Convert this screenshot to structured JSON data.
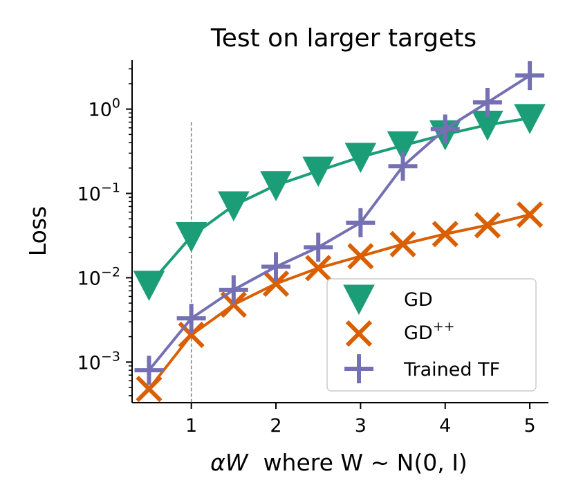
{
  "chart_data": {
    "type": "line",
    "title": "Test on larger targets",
    "ylabel": "Loss",
    "xlabel_math": "αW",
    "xlabel_text": "where W ∼ N(0, I)",
    "yscale": "log",
    "xlim": [
      0.3,
      5.22
    ],
    "ylim": [
      0.00033,
      3.8
    ],
    "x_ticks": [
      1,
      2,
      3,
      4,
      5
    ],
    "y_ticks": [
      {
        "value": 0.001,
        "base": "10",
        "exp": "−3"
      },
      {
        "value": 0.01,
        "base": "10",
        "exp": "−2"
      },
      {
        "value": 0.1,
        "base": "10",
        "exp": "−1"
      },
      {
        "value": 1,
        "base": "10",
        "exp": "0"
      }
    ],
    "vline": {
      "x": 1,
      "y_max": 0.7,
      "style": "dashed",
      "color": "#808080"
    },
    "grid": false,
    "legend_position": "lower-right",
    "x": [
      0.5,
      1.0,
      1.5,
      2.0,
      2.5,
      3.0,
      3.5,
      4.0,
      4.5,
      5.0
    ],
    "series": [
      {
        "name": "GD",
        "marker": "triangle-down",
        "color": "#1b9e77",
        "values": [
          0.0082,
          0.031,
          0.072,
          0.125,
          0.185,
          0.27,
          0.37,
          0.5,
          0.65,
          0.78
        ]
      },
      {
        "name": "GD",
        "name_sup": "++",
        "marker": "x",
        "color": "#d95f02",
        "values": [
          0.00048,
          0.0021,
          0.0048,
          0.0085,
          0.013,
          0.018,
          0.025,
          0.033,
          0.042,
          0.056
        ]
      },
      {
        "name": "Trained TF",
        "marker": "plus",
        "color": "#7570b3",
        "values": [
          0.0008,
          0.0033,
          0.0072,
          0.0135,
          0.023,
          0.045,
          0.21,
          0.58,
          1.2,
          2.5
        ]
      }
    ]
  }
}
